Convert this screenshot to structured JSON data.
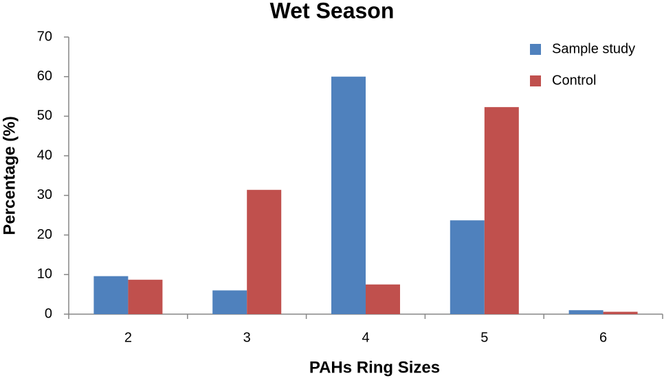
{
  "chart_data": {
    "type": "bar",
    "title": "Wet Season",
    "x_label": "PAHs Ring Sizes",
    "y_label": "Percentage (%)",
    "categories": [
      "2",
      "3",
      "4",
      "5",
      "6"
    ],
    "series": [
      {
        "name": "Sample study",
        "color": "#4f81bd",
        "values": [
          9.6,
          6,
          60,
          23.7,
          1
        ]
      },
      {
        "name": "Control",
        "color": "#c0504d",
        "values": [
          8.7,
          31.4,
          7.5,
          52.3,
          0.6
        ]
      }
    ],
    "ylim": [
      0,
      70
    ],
    "yticks": [
      0,
      10,
      20,
      30,
      40,
      50,
      60,
      70
    ],
    "grid": false,
    "legend": "top-right"
  }
}
